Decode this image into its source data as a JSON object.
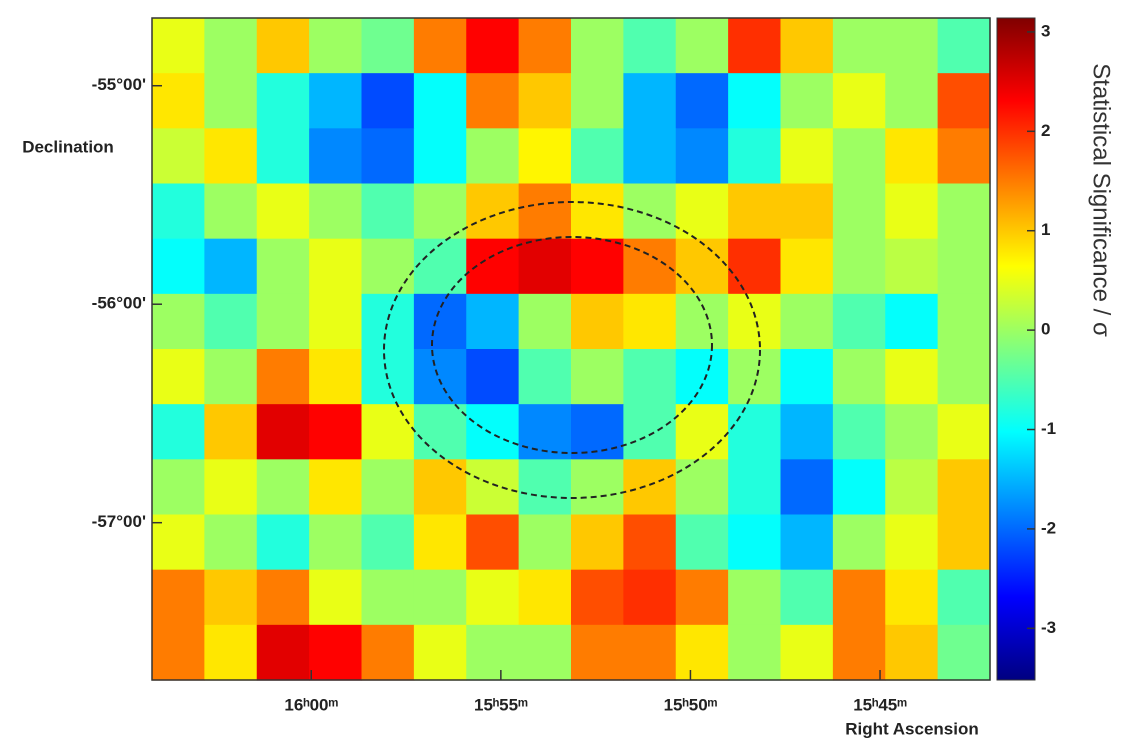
{
  "chart_data": {
    "type": "heatmap",
    "x_label": "Right Ascension",
    "y_label": "Declination",
    "colorbar_label": "Statistical Significance / σ",
    "colormap": "jet",
    "xlim": [
      964.2,
      942.1
    ],
    "xticks": [
      {
        "value": 960,
        "label": "16ʰ00ᵐ"
      },
      {
        "value": 955,
        "label": "15ʰ55ᵐ"
      },
      {
        "value": 950,
        "label": "15ʰ50ᵐ"
      },
      {
        "value": 945,
        "label": "15ʰ45ᵐ"
      }
    ],
    "ylim": [
      -57.72,
      -54.69
    ],
    "yticks": [
      {
        "value": -55,
        "label": "-55°00'"
      },
      {
        "value": -56,
        "label": "-56°00'"
      },
      {
        "value": -57,
        "label": "-57°00'"
      }
    ],
    "zlim": [
      -3.52,
      3.14
    ],
    "zticks": [
      3,
      2,
      1,
      0,
      -1,
      -2,
      -3
    ],
    "z": [
      [
        0.5,
        0,
        1,
        0,
        -0.3,
        1.5,
        2.3,
        1.5,
        0,
        -0.5,
        0,
        2,
        1,
        0,
        0,
        -0.5
      ],
      [
        0.8,
        0,
        -0.8,
        -1.5,
        -2.2,
        -1,
        1.5,
        1,
        0,
        -1.5,
        -2,
        -1,
        0,
        0.5,
        0,
        1.8
      ],
      [
        0.3,
        0.8,
        -0.8,
        -1.8,
        -2,
        -1,
        0,
        0.7,
        -0.5,
        -1.5,
        -1.8,
        -0.8,
        0.5,
        0,
        0.8,
        1.5
      ],
      [
        -0.8,
        0,
        0.5,
        0,
        -0.5,
        0,
        1,
        1.5,
        0.8,
        0,
        0.5,
        1,
        1,
        0,
        0.5,
        0
      ],
      [
        -1,
        -1.5,
        0,
        0.5,
        0,
        -0.5,
        2.3,
        2.5,
        2.3,
        1.5,
        1,
        2,
        0.8,
        0,
        0.2,
        0
      ],
      [
        0,
        -0.5,
        0,
        0.5,
        -0.8,
        -2,
        -1.5,
        0,
        1,
        0.8,
        0,
        0.5,
        0,
        -0.5,
        -1,
        0
      ],
      [
        0.5,
        0,
        1.5,
        0.8,
        -0.8,
        -1.8,
        -2.2,
        -0.5,
        0,
        -0.5,
        -1,
        0,
        -1,
        0,
        0.5,
        0
      ],
      [
        -0.8,
        1,
        2.5,
        2.3,
        0.5,
        -0.5,
        -1,
        -1.8,
        -2,
        -0.5,
        0.5,
        -0.8,
        -1.5,
        -0.5,
        0,
        0.5
      ],
      [
        0,
        0.5,
        0,
        0.8,
        0,
        1,
        0.3,
        -0.5,
        0,
        1,
        0,
        -0.8,
        -2,
        -1,
        0.2,
        1
      ],
      [
        0.5,
        0,
        -0.8,
        0,
        -0.5,
        0.8,
        1.8,
        0,
        1,
        1.8,
        -0.5,
        -1,
        -1.5,
        0,
        0.5,
        1
      ],
      [
        1.5,
        1,
        1.5,
        0.5,
        0,
        0,
        0.5,
        0.8,
        1.8,
        2,
        1.5,
        0,
        -0.5,
        1.5,
        0.8,
        -0.5
      ],
      [
        1.5,
        0.8,
        2.5,
        2.3,
        1.5,
        0.5,
        0,
        0,
        1.5,
        1.5,
        0.8,
        0,
        0.5,
        1.5,
        1,
        -0.3
      ]
    ]
  }
}
